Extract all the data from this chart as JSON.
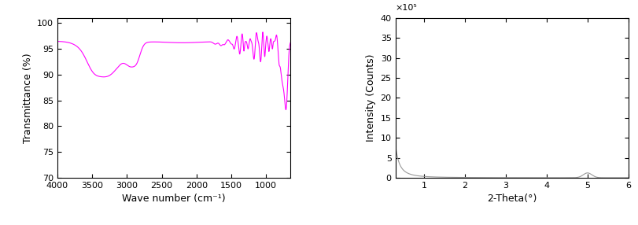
{
  "ftir": {
    "color": "#FF00FF",
    "xlabel": "Wave number (cm⁻¹)",
    "ylabel": "Transmittance (%)",
    "xlim": [
      650,
      4000
    ],
    "ylim": [
      70,
      101
    ],
    "yticks": [
      70,
      75,
      80,
      85,
      90,
      95,
      100
    ],
    "xticks": [
      4000,
      3500,
      3000,
      2500,
      2000,
      1500,
      1000
    ]
  },
  "saxs": {
    "color": "#999999",
    "xlabel": "2-Theta(°)",
    "ylabel": "Intensity (Counts)",
    "xlim": [
      0.3,
      6.0
    ],
    "ylim": [
      0,
      40
    ],
    "yticks": [
      0,
      5,
      10,
      15,
      20,
      25,
      30,
      35,
      40
    ],
    "xticks": [
      1,
      2,
      3,
      4,
      5,
      6
    ],
    "scale_label": "×10⁵"
  }
}
